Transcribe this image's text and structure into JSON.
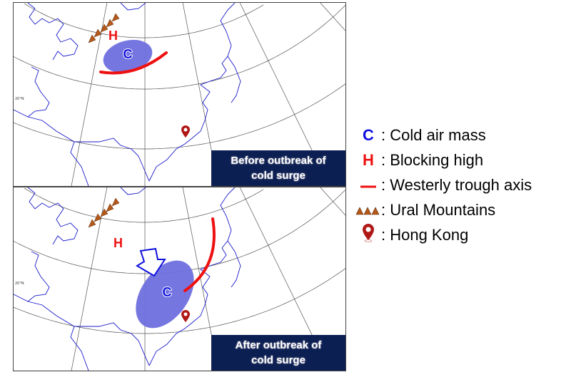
{
  "panels": [
    {
      "caption_line1": "Before outbreak of",
      "caption_line2": "cold surge",
      "high": "H",
      "cold": "C",
      "lat_label": "20°N"
    },
    {
      "caption_line1": "After outbreak of",
      "caption_line2": "cold surge",
      "high": "H",
      "cold": "C",
      "lat_label": "20°N"
    }
  ],
  "legend": {
    "items": [
      {
        "symbol": "C",
        "label": ": Cold air mass",
        "color": "#1010e0"
      },
      {
        "symbol": "H",
        "label": ": Blocking high",
        "color": "#ee1111"
      },
      {
        "symbol": "line",
        "label": ": Westerly trough axis",
        "color": "#ee1111"
      },
      {
        "symbol": "triangles",
        "label": ": Ural Mountains",
        "color": "#b5581a"
      },
      {
        "symbol": "pin",
        "label": ": Hong Kong",
        "color": "#b01818"
      }
    ]
  },
  "colors": {
    "caption_bg": "#0c1f52",
    "cold_mass": "#6f6fdf",
    "coast": "#1a1acc"
  }
}
